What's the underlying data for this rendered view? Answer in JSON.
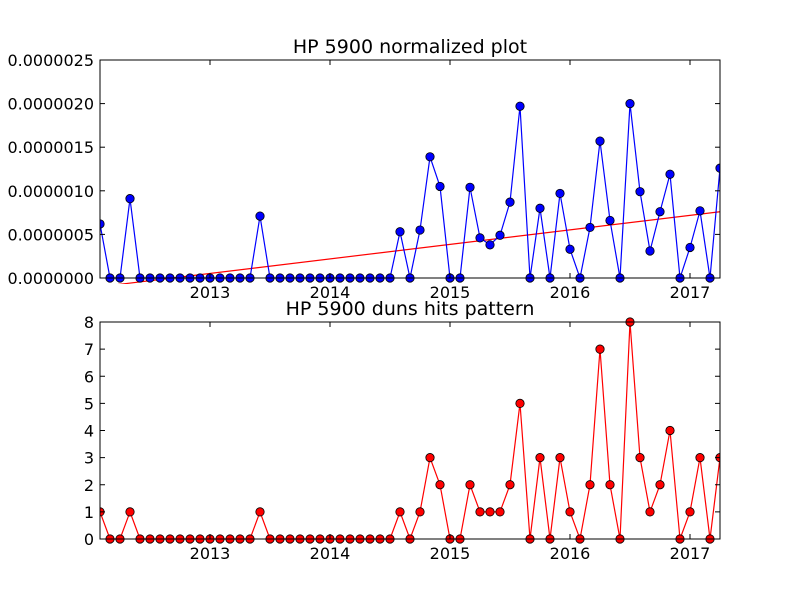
{
  "chart_data": [
    {
      "type": "line",
      "title": "HP 5900 normalized plot",
      "xlabel": "",
      "ylabel": "",
      "x_tick_labels": [
        "2013",
        "2014",
        "2015",
        "2016",
        "2017"
      ],
      "y_tick_labels": [
        "0.0000000",
        "0.0000005",
        "0.0000010",
        "0.0000015",
        "0.0000020",
        "0.0000025"
      ],
      "ylim": [
        0,
        2.5e-06
      ],
      "xlim": [
        "2012-02",
        "2017-04"
      ],
      "grid": false,
      "legend": "none",
      "x": [
        "2012-02",
        "2012-03",
        "2012-04",
        "2012-05",
        "2012-06",
        "2012-07",
        "2012-08",
        "2012-09",
        "2012-10",
        "2012-11",
        "2012-12",
        "2013-01",
        "2013-02",
        "2013-03",
        "2013-04",
        "2013-05",
        "2013-06",
        "2013-07",
        "2013-08",
        "2013-09",
        "2013-10",
        "2013-11",
        "2013-12",
        "2014-01",
        "2014-02",
        "2014-03",
        "2014-04",
        "2014-05",
        "2014-06",
        "2014-07",
        "2014-08",
        "2014-09",
        "2014-10",
        "2014-11",
        "2014-12",
        "2015-01",
        "2015-02",
        "2015-03",
        "2015-04",
        "2015-05",
        "2015-06",
        "2015-07",
        "2015-08",
        "2015-09",
        "2015-10",
        "2015-11",
        "2015-12",
        "2016-01",
        "2016-02",
        "2016-03",
        "2016-04",
        "2016-05",
        "2016-06",
        "2016-07",
        "2016-08",
        "2016-09",
        "2016-10",
        "2016-11",
        "2016-12",
        "2017-01",
        "2017-02",
        "2017-03",
        "2017-04"
      ],
      "series": [
        {
          "color": "#0000ff",
          "marker": "circle",
          "values": [
            6.2e-07,
            0,
            0,
            9.1e-07,
            0,
            0,
            0,
            0,
            0,
            0,
            0,
            0,
            0,
            0,
            0,
            0,
            7.1e-07,
            0,
            0,
            0,
            0,
            0,
            0,
            0,
            0,
            0,
            0,
            0,
            0,
            0,
            5.3e-07,
            0,
            5.5e-07,
            1.39e-06,
            1.05e-06,
            0,
            0,
            1.04e-06,
            4.6e-07,
            3.8e-07,
            4.9e-07,
            8.7e-07,
            1.97e-06,
            0,
            8e-07,
            0,
            9.7e-07,
            3.3e-07,
            0,
            5.8e-07,
            1.57e-06,
            6.6e-07,
            0,
            2e-06,
            9.9e-07,
            3.1e-07,
            7.6e-07,
            1.19e-06,
            0,
            3.5e-07,
            7.7e-07,
            0,
            1.26e-06
          ]
        }
      ],
      "trendline": {
        "color": "#ff0000",
        "start": [
          "2012-02",
          -1e-07
        ],
        "end": [
          "2017-04",
          7.6e-07
        ]
      }
    },
    {
      "type": "line",
      "title": "HP 5900 duns hits pattern",
      "xlabel": "",
      "ylabel": "",
      "x_tick_labels": [
        "2013",
        "2014",
        "2015",
        "2016",
        "2017"
      ],
      "y_tick_labels": [
        "0",
        "1",
        "2",
        "3",
        "4",
        "5",
        "6",
        "7",
        "8"
      ],
      "ylim": [
        0,
        8
      ],
      "xlim": [
        "2012-02",
        "2017-04"
      ],
      "grid": false,
      "legend": "none",
      "x": [
        "2012-02",
        "2012-03",
        "2012-04",
        "2012-05",
        "2012-06",
        "2012-07",
        "2012-08",
        "2012-09",
        "2012-10",
        "2012-11",
        "2012-12",
        "2013-01",
        "2013-02",
        "2013-03",
        "2013-04",
        "2013-05",
        "2013-06",
        "2013-07",
        "2013-08",
        "2013-09",
        "2013-10",
        "2013-11",
        "2013-12",
        "2014-01",
        "2014-02",
        "2014-03",
        "2014-04",
        "2014-05",
        "2014-06",
        "2014-07",
        "2014-08",
        "2014-09",
        "2014-10",
        "2014-11",
        "2014-12",
        "2015-01",
        "2015-02",
        "2015-03",
        "2015-04",
        "2015-05",
        "2015-06",
        "2015-07",
        "2015-08",
        "2015-09",
        "2015-10",
        "2015-11",
        "2015-12",
        "2016-01",
        "2016-02",
        "2016-03",
        "2016-04",
        "2016-05",
        "2016-06",
        "2016-07",
        "2016-08",
        "2016-09",
        "2016-10",
        "2016-11",
        "2016-12",
        "2017-01",
        "2017-02",
        "2017-03",
        "2017-04"
      ],
      "series": [
        {
          "color": "#ff0000",
          "marker": "circle",
          "values": [
            1,
            0,
            0,
            1,
            0,
            0,
            0,
            0,
            0,
            0,
            0,
            0,
            0,
            0,
            0,
            0,
            1,
            0,
            0,
            0,
            0,
            0,
            0,
            0,
            0,
            0,
            0,
            0,
            0,
            0,
            1,
            0,
            1,
            3,
            2,
            0,
            0,
            2,
            1,
            1,
            1,
            2,
            5,
            0,
            3,
            0,
            3,
            1,
            0,
            2,
            7,
            2,
            0,
            8,
            3,
            1,
            2,
            4,
            0,
            1,
            3,
            0,
            3
          ]
        }
      ]
    }
  ]
}
